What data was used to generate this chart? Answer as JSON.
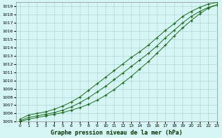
{
  "title": "Graphe pression niveau de la mer (hPa)",
  "background_color": "#d6f5f5",
  "grid_color": "#b0d8d8",
  "line_color": "#1a6b1a",
  "marker": "+",
  "xlim": [
    -0.5,
    23
  ],
  "ylim": [
    1005,
    1019.5
  ],
  "xticks": [
    0,
    1,
    2,
    3,
    4,
    5,
    6,
    7,
    8,
    9,
    10,
    11,
    12,
    13,
    14,
    15,
    16,
    17,
    18,
    19,
    20,
    21,
    22,
    23
  ],
  "yticks": [
    1005,
    1006,
    1007,
    1008,
    1009,
    1010,
    1011,
    1012,
    1013,
    1014,
    1015,
    1016,
    1017,
    1018,
    1019
  ],
  "series1_x": [
    0,
    1,
    2,
    3,
    4,
    5,
    6,
    7,
    8,
    9,
    10,
    11,
    12,
    13,
    14,
    15,
    16,
    17,
    18,
    19,
    20,
    21,
    22,
    23
  ],
  "series1_y": [
    1005.3,
    1005.8,
    1006.0,
    1006.2,
    1006.5,
    1006.9,
    1007.4,
    1008.0,
    1008.8,
    1009.6,
    1010.4,
    1011.2,
    1012.0,
    1012.8,
    1013.5,
    1014.3,
    1015.2,
    1016.1,
    1016.9,
    1017.8,
    1018.4,
    1018.9,
    1019.3,
    1019.5
  ],
  "series2_x": [
    0,
    1,
    2,
    3,
    4,
    5,
    6,
    7,
    8,
    9,
    10,
    11,
    12,
    13,
    14,
    15,
    16,
    17,
    18,
    19,
    20,
    21,
    22,
    23
  ],
  "series2_y": [
    1005.1,
    1005.5,
    1005.7,
    1005.9,
    1006.1,
    1006.4,
    1006.8,
    1007.3,
    1007.9,
    1008.6,
    1009.3,
    1010.1,
    1010.9,
    1011.7,
    1012.5,
    1013.3,
    1014.2,
    1015.2,
    1016.1,
    1017.0,
    1017.8,
    1018.4,
    1018.9,
    1019.2
  ],
  "series3_x": [
    0,
    1,
    2,
    3,
    4,
    5,
    6,
    7,
    8,
    9,
    10,
    11,
    12,
    13,
    14,
    15,
    16,
    17,
    18,
    19,
    20,
    21,
    22,
    23
  ],
  "series3_y": [
    1005.0,
    1005.3,
    1005.5,
    1005.7,
    1005.9,
    1006.1,
    1006.4,
    1006.7,
    1007.1,
    1007.6,
    1008.2,
    1008.9,
    1009.7,
    1010.5,
    1011.4,
    1012.3,
    1013.3,
    1014.3,
    1015.4,
    1016.4,
    1017.3,
    1018.1,
    1018.8,
    1019.2
  ]
}
